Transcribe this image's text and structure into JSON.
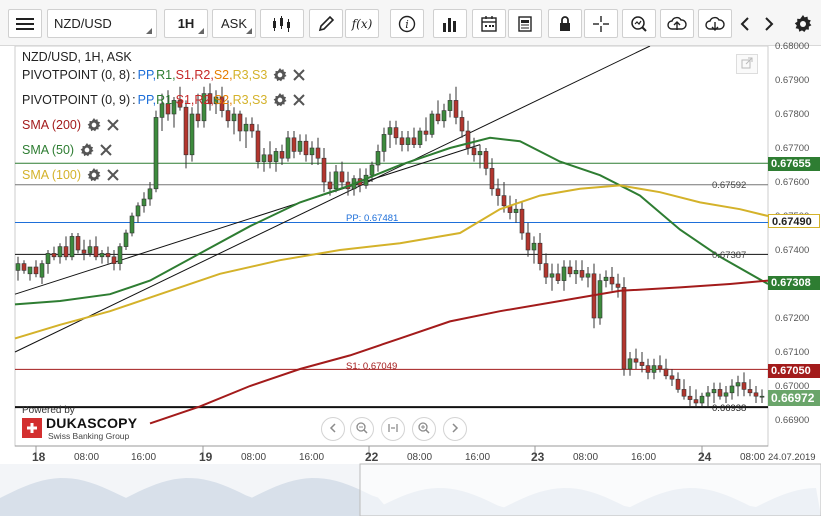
{
  "toolbar": {
    "symbol": "NZD/USD",
    "timeframe": "1H",
    "side": "ASK",
    "fx_label": "f(x)"
  },
  "chart": {
    "header": "NZD/USD, 1H, ASK",
    "legends": [
      {
        "name": "PIVOTPOINT (0, 8)",
        "levels": [
          "PP",
          "R1",
          "S1",
          "R2",
          "S2",
          "R3",
          "S3"
        ]
      },
      {
        "name": "PIVOTPOINT (0, 9)",
        "levels": [
          "PP",
          "R1",
          "S1",
          "R2",
          "S2",
          "R3",
          "S3"
        ]
      },
      {
        "name": "SMA (200)",
        "color": "#a31b1b"
      },
      {
        "name": "SMA (50)",
        "color": "#2e7d32"
      },
      {
        "name": "SMA (100)",
        "color": "#d4b22a"
      }
    ],
    "level_colors": {
      "PP": "#1e6fd9",
      "R1": "#2e7d32",
      "S1": "#c62828",
      "R2": "#c62828",
      "S2": "#e67e00",
      "R3": "#d4b22a",
      "S3": "#d4b22a"
    },
    "price_axis": [
      "0.68000",
      "0.67900",
      "0.67800",
      "0.67700",
      "0.67600",
      "0.67500",
      "0.67400",
      "0.67300",
      "0.67200",
      "0.67100",
      "0.67000",
      "0.66900"
    ],
    "time_axis": [
      {
        "label": "18",
        "bold": true
      },
      {
        "label": "08:00"
      },
      {
        "label": "16:00"
      },
      {
        "label": "19",
        "bold": true
      },
      {
        "label": "08:00"
      },
      {
        "label": "16:00"
      },
      {
        "label": "22",
        "bold": true
      },
      {
        "label": "08:00"
      },
      {
        "label": "16:00"
      },
      {
        "label": "23",
        "bold": true
      },
      {
        "label": "08:00"
      },
      {
        "label": "16:00"
      },
      {
        "label": "24",
        "bold": true
      },
      {
        "label": "08:00"
      },
      {
        "label": "24.07.2019"
      }
    ],
    "lines": {
      "r1": {
        "price": 0.67655,
        "tag": "0.67655",
        "color": "#2e7d32"
      },
      "h1": {
        "label": "0.67592"
      },
      "pp": {
        "label": "PP: 0.67481",
        "tag": "0.67490"
      },
      "h2": {
        "label": "0.67387"
      },
      "sma200_tag": "0.67308",
      "s1": {
        "label": "S1: 0.67049",
        "tag": "0.67050"
      },
      "low": {
        "label": "0.66938"
      },
      "last": {
        "tag": "0.66972"
      }
    },
    "branding": {
      "powered": "Powered by",
      "name": "DUKASCOPY",
      "sub": "Swiss Banking Group"
    }
  }
}
